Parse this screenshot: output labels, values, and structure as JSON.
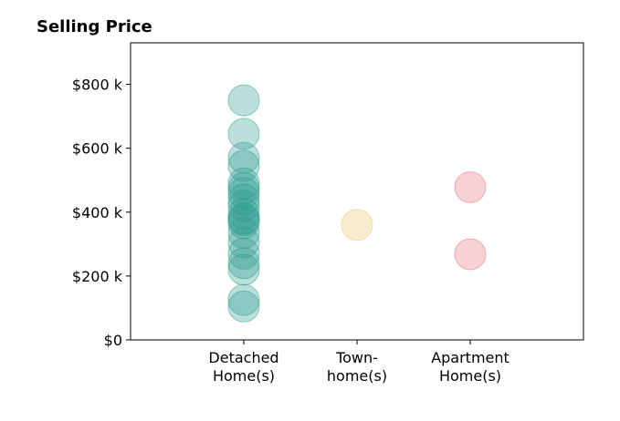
{
  "chart_data": {
    "type": "scatter",
    "title": "Selling Price",
    "xlabel": "",
    "ylabel": "",
    "categories": [
      [
        "Detached",
        "Home(s)"
      ],
      [
        "Town-",
        "home(s)"
      ],
      [
        "Apartment",
        "Home(s)"
      ]
    ],
    "y_ticks": [
      {
        "value": 0,
        "label": "$0"
      },
      {
        "value": 200,
        "label": "$200 k"
      },
      {
        "value": 400,
        "label": "$400 k"
      },
      {
        "value": 600,
        "label": "$600 k"
      },
      {
        "value": 800,
        "label": "$800 k"
      }
    ],
    "ylim": [
      0,
      930
    ],
    "xlim": [
      -1,
      3
    ],
    "grid": false,
    "legend": "none",
    "unit": "thousand USD",
    "series": [
      {
        "category_index": 0,
        "color": "#2a9d8f",
        "values": [
          750,
          645,
          570,
          545,
          490,
          475,
          460,
          440,
          420,
          395,
          380,
          375,
          365,
          335,
          305,
          270,
          240,
          220,
          125,
          105
        ]
      },
      {
        "category_index": 1,
        "color": "#e9c46a",
        "values": [
          360
        ]
      },
      {
        "category_index": 2,
        "color": "#e76f7a",
        "values": [
          478,
          268
        ]
      }
    ]
  }
}
